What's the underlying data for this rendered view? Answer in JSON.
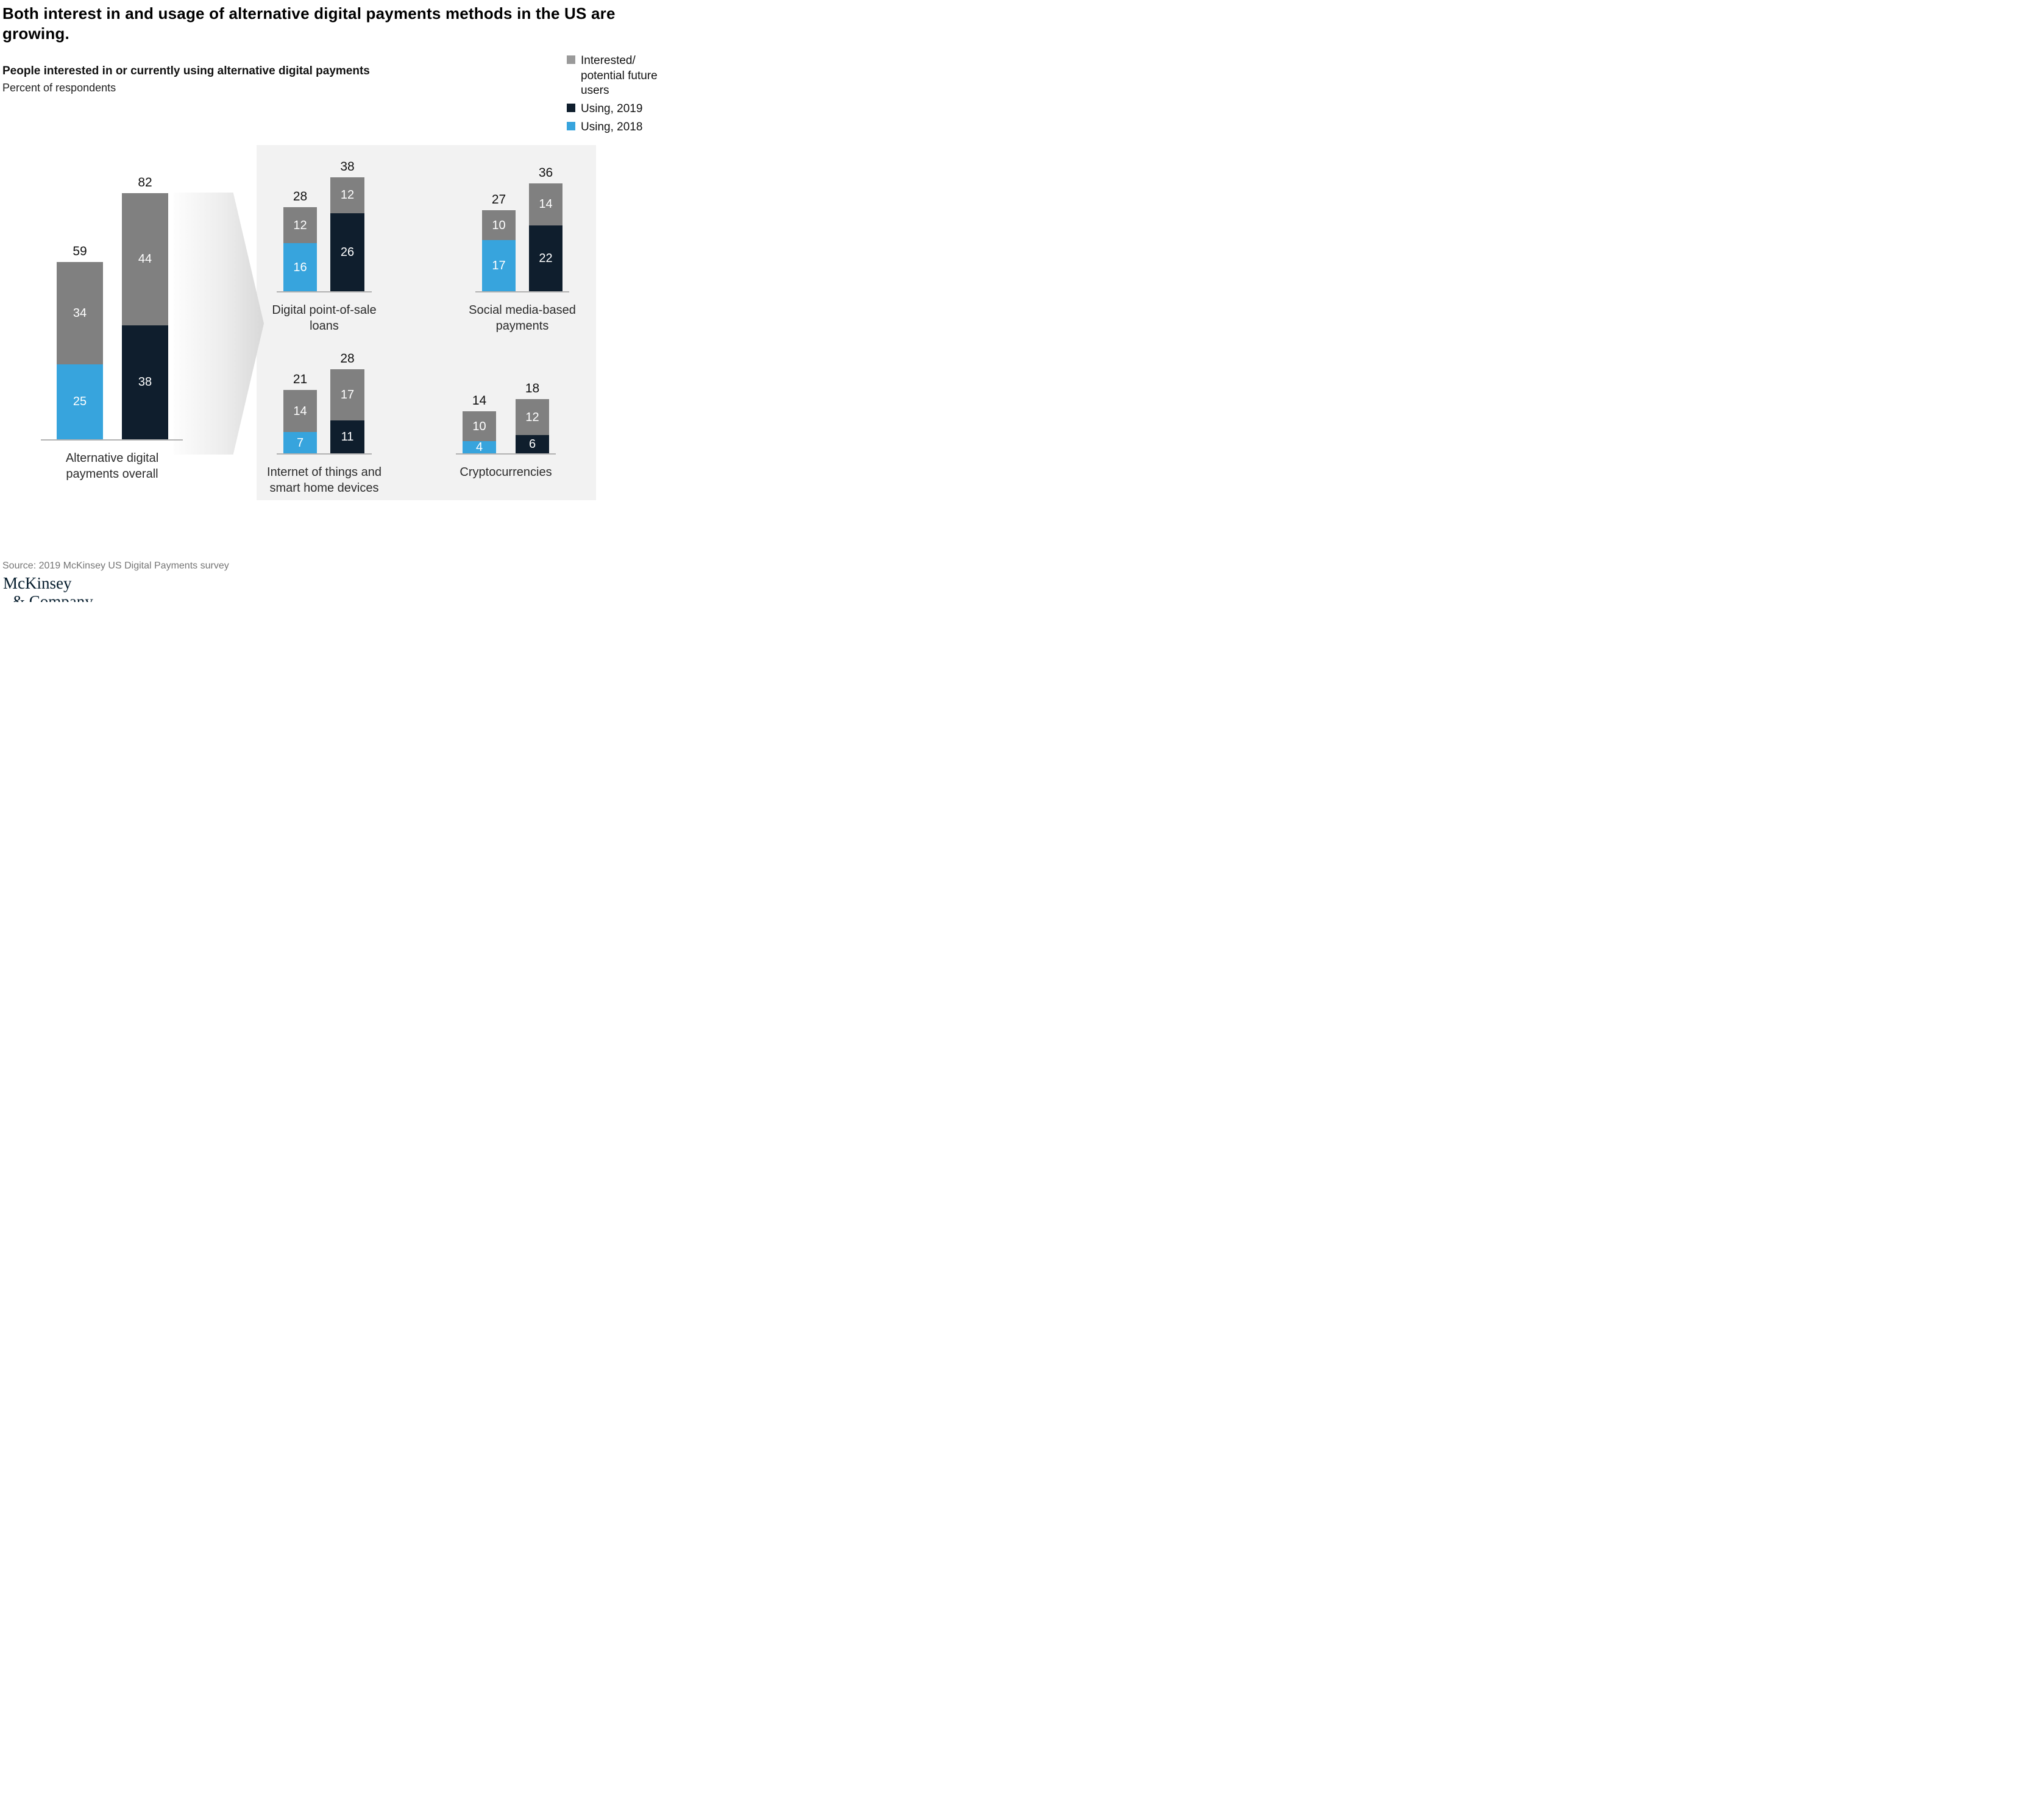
{
  "title": "Both interest in and usage of alternative digital payments methods in the US are growing.",
  "subtitle": "People interested in or currently using alternative digital payments",
  "unit_label": "Percent of respondents",
  "source": "Source: 2019 McKinsey US Digital Payments survey",
  "logo": {
    "line1": "McKinsey",
    "line2": "& Company"
  },
  "colors": {
    "using_2018": "#37a4dd",
    "using_2019": "#0f1e2d",
    "interested": "#808080",
    "legend_interested_swatch": "#9a9a9a",
    "panel_background": "#f2f2f2",
    "axis": "#b1b1b1"
  },
  "legend": [
    {
      "label": "Interested/ potential future users",
      "color_key": "legend_interested_swatch"
    },
    {
      "label": "Using, 2019",
      "color_key": "using_2019"
    },
    {
      "label": "Using, 2018",
      "color_key": "using_2018"
    }
  ],
  "chart_data": [
    {
      "id": "overall",
      "type": "bar",
      "stacked": true,
      "title": "Alternative digital payments overall",
      "value_unit": "percent of respondents",
      "categories": [
        "2018",
        "2019"
      ],
      "bars": [
        {
          "category": "2018",
          "total": 59,
          "segments": [
            {
              "series": "Using, 2018",
              "color_key": "using_2018",
              "value": 25
            },
            {
              "series": "Interested/ potential future users",
              "color_key": "interested",
              "value": 34
            }
          ]
        },
        {
          "category": "2019",
          "total": 82,
          "segments": [
            {
              "series": "Using, 2019",
              "color_key": "using_2019",
              "value": 38
            },
            {
              "series": "Interested/ potential future users",
              "color_key": "interested",
              "value": 44
            }
          ]
        }
      ]
    },
    {
      "id": "pos",
      "type": "bar",
      "stacked": true,
      "title": "Digital point-of-sale loans",
      "value_unit": "percent of respondents",
      "categories": [
        "2018",
        "2019"
      ],
      "bars": [
        {
          "category": "2018",
          "total": 28,
          "segments": [
            {
              "series": "Using, 2018",
              "color_key": "using_2018",
              "value": 16
            },
            {
              "series": "Interested/ potential future users",
              "color_key": "interested",
              "value": 12
            }
          ]
        },
        {
          "category": "2019",
          "total": 38,
          "segments": [
            {
              "series": "Using, 2019",
              "color_key": "using_2019",
              "value": 26
            },
            {
              "series": "Interested/ potential future users",
              "color_key": "interested",
              "value": 12
            }
          ]
        }
      ]
    },
    {
      "id": "social",
      "type": "bar",
      "stacked": true,
      "title": "Social media-based payments",
      "value_unit": "percent of respondents",
      "categories": [
        "2018",
        "2019"
      ],
      "bars": [
        {
          "category": "2018",
          "total": 27,
          "segments": [
            {
              "series": "Using, 2018",
              "color_key": "using_2018",
              "value": 17
            },
            {
              "series": "Interested/ potential future users",
              "color_key": "interested",
              "value": 10
            }
          ]
        },
        {
          "category": "2019",
          "total": 36,
          "segments": [
            {
              "series": "Using, 2019",
              "color_key": "using_2019",
              "value": 22
            },
            {
              "series": "Interested/ potential future users",
              "color_key": "interested",
              "value": 14
            }
          ]
        }
      ]
    },
    {
      "id": "iot",
      "type": "bar",
      "stacked": true,
      "title": "Internet of things and smart home devices",
      "value_unit": "percent of respondents",
      "categories": [
        "2018",
        "2019"
      ],
      "bars": [
        {
          "category": "2018",
          "total": 21,
          "segments": [
            {
              "series": "Using, 2018",
              "color_key": "using_2018",
              "value": 7
            },
            {
              "series": "Interested/ potential future users",
              "color_key": "interested",
              "value": 14
            }
          ]
        },
        {
          "category": "2019",
          "total": 28,
          "segments": [
            {
              "series": "Using, 2019",
              "color_key": "using_2019",
              "value": 11
            },
            {
              "series": "Interested/ potential future users",
              "color_key": "interested",
              "value": 17
            }
          ]
        }
      ]
    },
    {
      "id": "crypto",
      "type": "bar",
      "stacked": true,
      "title": "Cryptocurrencies",
      "value_unit": "percent of respondents",
      "categories": [
        "2018",
        "2019"
      ],
      "bars": [
        {
          "category": "2018",
          "total": 14,
          "segments": [
            {
              "series": "Using, 2018",
              "color_key": "using_2018",
              "value": 4
            },
            {
              "series": "Interested/ potential future users",
              "color_key": "interested",
              "value": 10
            }
          ]
        },
        {
          "category": "2019",
          "total": 18,
          "segments": [
            {
              "series": "Using, 2019",
              "color_key": "using_2019",
              "value": 6
            },
            {
              "series": "Interested/ potential future users",
              "color_key": "interested",
              "value": 12
            }
          ]
        }
      ]
    }
  ]
}
